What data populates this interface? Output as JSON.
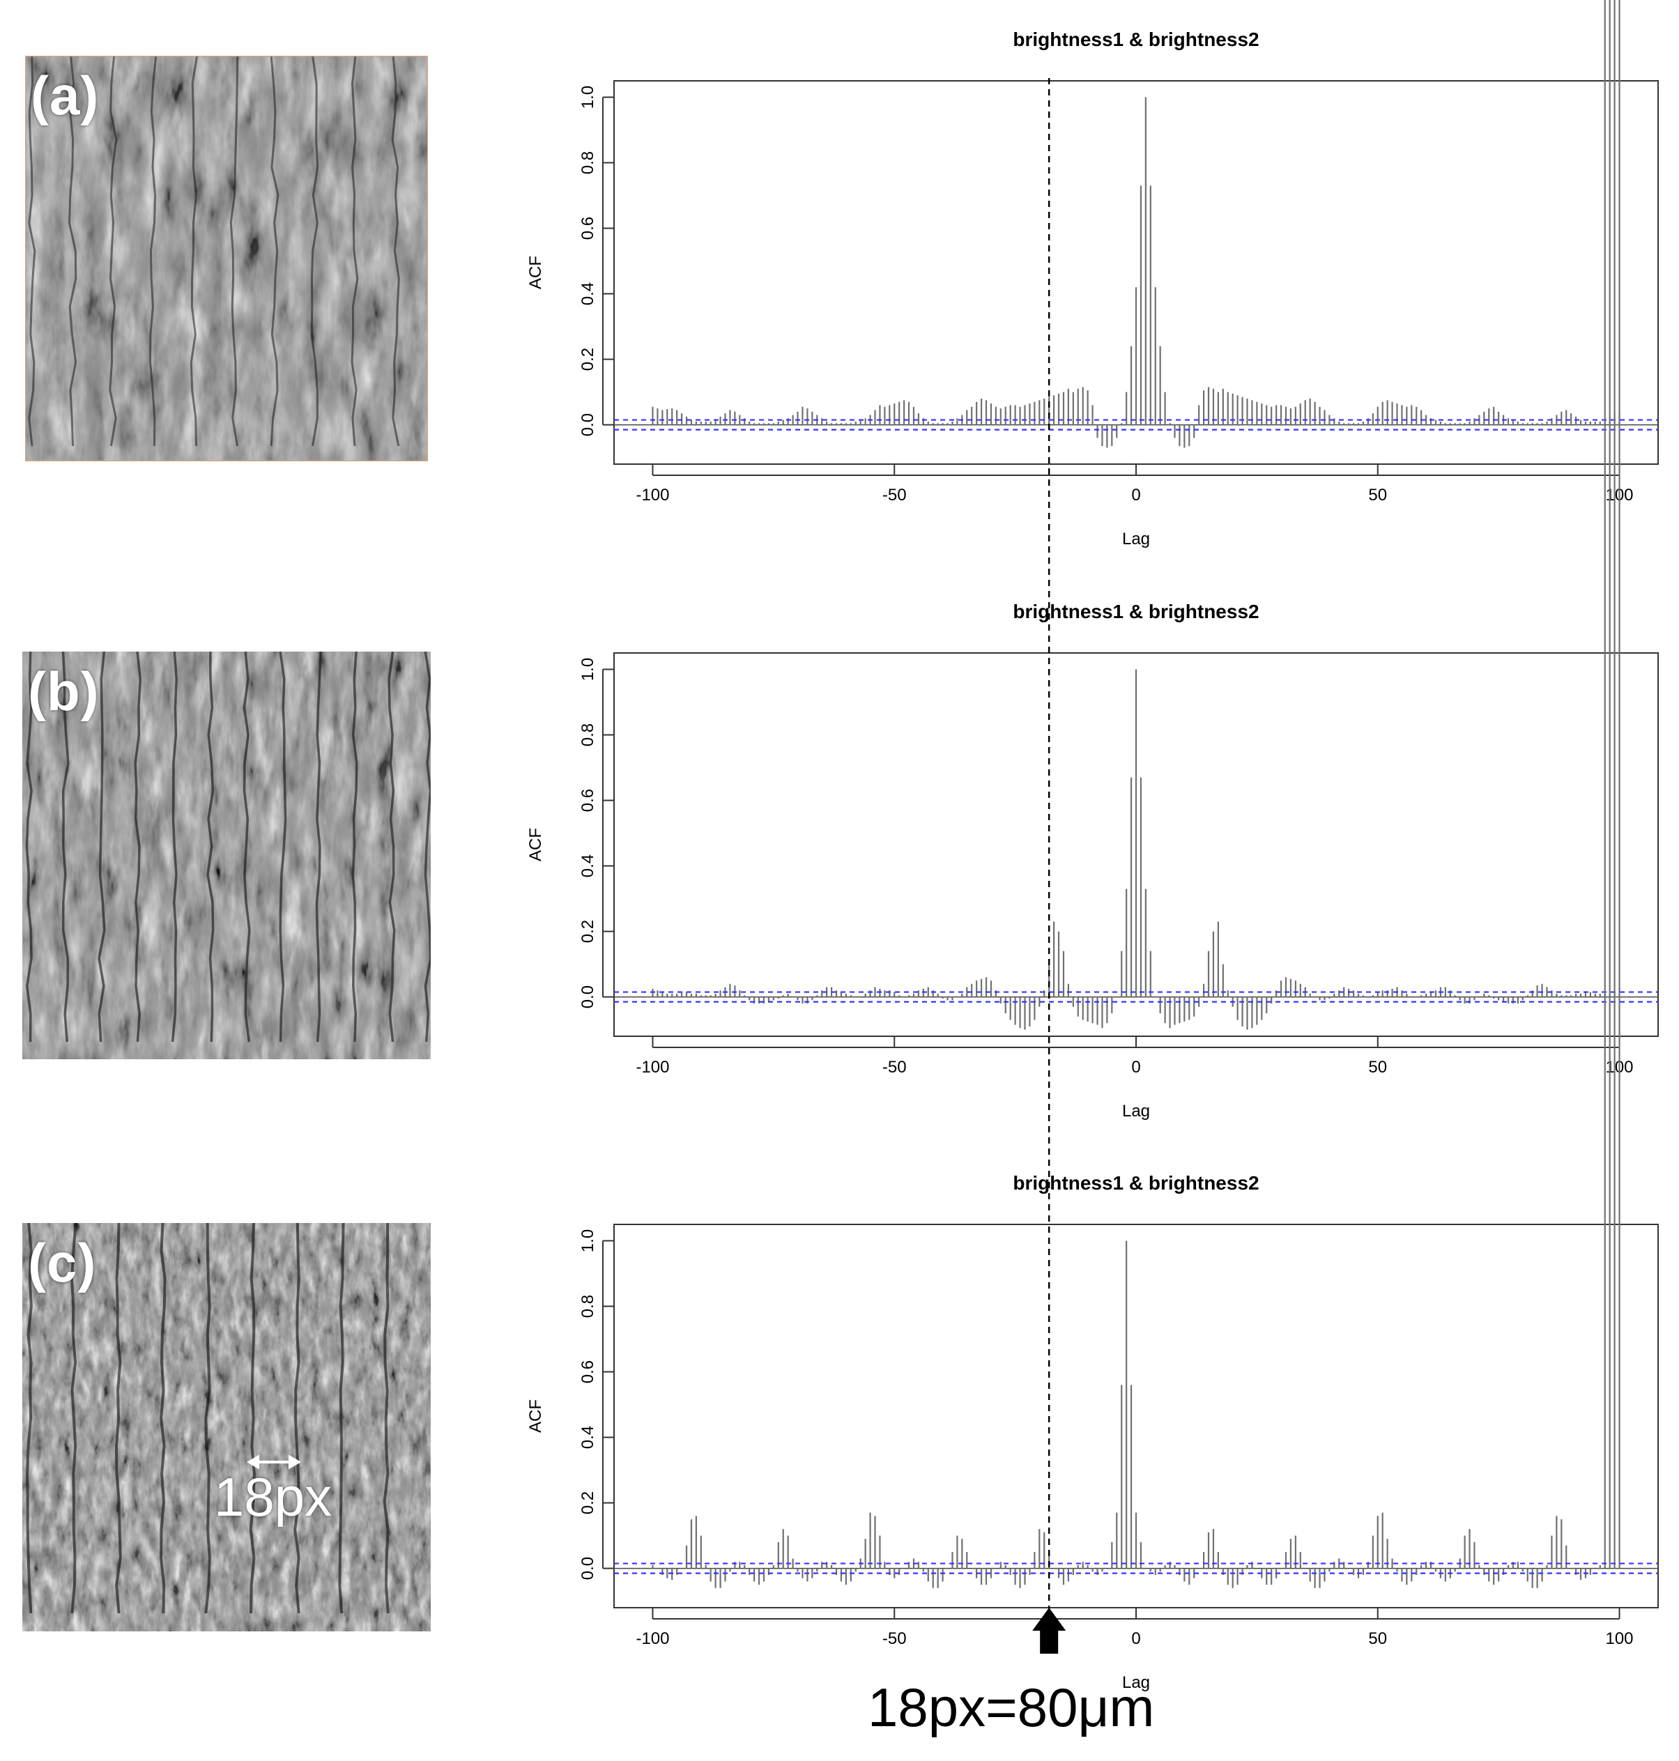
{
  "panels": [
    {
      "letter": "(a)"
    },
    {
      "letter": "(b)"
    },
    {
      "letter": "(c)",
      "annotation": "18px"
    }
  ],
  "scale_caption": "18px=80μm",
  "reference_line_lag": -18,
  "colors": {
    "bars": "#707070",
    "confidence": "#3333ff",
    "reference": "#000000",
    "text": "#000000"
  },
  "chart_data": [
    {
      "type": "bar",
      "title": "brightness1 & brightness2",
      "xlabel": "Lag",
      "ylabel": "ACF",
      "xlim": [
        -108,
        108
      ],
      "ylim": [
        -0.12,
        1.05
      ],
      "xticks": [
        -100,
        -50,
        0,
        50,
        100
      ],
      "yticks": [
        0.0,
        0.2,
        0.4,
        0.6,
        0.8,
        1.0
      ],
      "ci": 0.015,
      "lags": [
        -100,
        -99,
        -98,
        -97,
        -96,
        -95,
        -94,
        -93,
        -92,
        -91,
        -90,
        -89,
        -88,
        -87,
        -86,
        -85,
        -84,
        -83,
        -82,
        -81,
        -80,
        -79,
        -78,
        -77,
        -76,
        -75,
        -74,
        -73,
        -72,
        -71,
        -70,
        -69,
        -68,
        -67,
        -66,
        -65,
        -64,
        -63,
        -62,
        -61,
        -60,
        -59,
        -58,
        -57,
        -56,
        -55,
        -54,
        -53,
        -52,
        -51,
        -50,
        -49,
        -48,
        -47,
        -46,
        -45,
        -44,
        -43,
        -42,
        -41,
        -40,
        -39,
        -38,
        -37,
        -36,
        -35,
        -34,
        -33,
        -32,
        -31,
        -30,
        -29,
        -28,
        -27,
        -26,
        -25,
        -24,
        -23,
        -22,
        -21,
        -20,
        -19,
        -18,
        -17,
        -16,
        -15,
        -14,
        -13,
        -12,
        -11,
        -10,
        -9,
        -8,
        -7,
        -6,
        -5,
        -4,
        -3,
        -2,
        -1,
        0,
        1,
        2,
        3,
        4,
        5,
        6,
        7,
        8,
        9,
        10,
        11,
        12,
        13,
        14,
        15,
        16,
        17,
        18,
        19,
        20,
        21,
        22,
        23,
        24,
        25,
        26,
        27,
        28,
        29,
        30,
        31,
        32,
        33,
        34,
        35,
        36,
        37,
        38,
        39,
        40,
        41,
        42,
        43,
        44,
        45,
        46,
        47,
        48,
        49,
        50,
        51,
        52,
        53,
        54,
        55,
        56,
        57,
        58,
        59,
        60,
        61,
        62,
        63,
        64,
        65,
        66,
        67,
        68,
        69,
        70,
        71,
        72,
        73,
        74,
        75,
        76,
        77,
        78,
        79,
        80,
        81,
        82,
        83,
        84,
        85,
        86,
        87,
        88,
        89,
        90,
        91,
        92,
        93,
        94,
        95,
        96,
        97,
        98,
        99,
        100
      ],
      "values": [
        0.055,
        0.05,
        0.045,
        0.048,
        0.05,
        0.045,
        0.035,
        0.025,
        0.015,
        0.01,
        0.01,
        0.01,
        0.01,
        0.015,
        0.025,
        0.035,
        0.045,
        0.04,
        0.03,
        0.02,
        0.01,
        0.005,
        0.005,
        0.005,
        0.005,
        0.005,
        0.01,
        0.015,
        0.02,
        0.03,
        0.04,
        0.055,
        0.05,
        0.04,
        0.03,
        0.02,
        0.01,
        0.005,
        0.005,
        0.005,
        0.005,
        0.005,
        0.01,
        0.015,
        0.02,
        0.03,
        0.045,
        0.06,
        0.055,
        0.06,
        0.065,
        0.07,
        0.075,
        0.07,
        0.055,
        0.035,
        0.02,
        0.01,
        0.005,
        0.005,
        0.005,
        0.005,
        0.01,
        0.02,
        0.03,
        0.045,
        0.055,
        0.07,
        0.08,
        0.075,
        0.065,
        0.055,
        0.05,
        0.055,
        0.06,
        0.06,
        0.055,
        0.06,
        0.065,
        0.07,
        0.075,
        0.08,
        0.085,
        0.09,
        0.095,
        0.1,
        0.11,
        0.1,
        0.11,
        0.115,
        0.105,
        0.06,
        -0.04,
        -0.065,
        -0.07,
        -0.065,
        -0.04,
        0.005,
        0.1,
        0.24,
        0.42,
        0.73,
        1.0,
        0.73,
        0.42,
        0.24,
        0.1,
        0.005,
        -0.04,
        -0.065,
        -0.07,
        -0.065,
        -0.04,
        0.06,
        0.105,
        0.115,
        0.11,
        0.1,
        0.11,
        0.1,
        0.095,
        0.09,
        0.085,
        0.08,
        0.075,
        0.07,
        0.065,
        0.06,
        0.055,
        0.06,
        0.06,
        0.055,
        0.05,
        0.055,
        0.065,
        0.075,
        0.08,
        0.07,
        0.055,
        0.045,
        0.03,
        0.02,
        0.01,
        0.005,
        0.005,
        0.005,
        0.005,
        0.01,
        0.02,
        0.035,
        0.055,
        0.07,
        0.075,
        0.07,
        0.065,
        0.06,
        0.055,
        0.06,
        0.055,
        0.045,
        0.03,
        0.02,
        0.015,
        0.01,
        0.005,
        0.005,
        0.005,
        0.005,
        0.005,
        0.01,
        0.02,
        0.03,
        0.04,
        0.05,
        0.055,
        0.04,
        0.03,
        0.02,
        0.015,
        0.01,
        0.005,
        0.005,
        0.005,
        0.005,
        0.005,
        0.01,
        0.02,
        0.03,
        0.04,
        0.045,
        0.035,
        0.025,
        0.015,
        0.01,
        0.01,
        0.01,
        0.01,
        0.015,
        0.025,
        0.035,
        0.045,
        0.05,
        0.048,
        0.045,
        0.05,
        0.055
      ]
    },
    {
      "type": "bar",
      "title": "brightness1 & brightness2",
      "xlabel": "Lag",
      "ylabel": "ACF",
      "xlim": [
        -108,
        108
      ],
      "ylim": [
        -0.12,
        1.05
      ],
      "xticks": [
        -100,
        -50,
        0,
        50,
        100
      ],
      "yticks": [
        0.0,
        0.2,
        0.4,
        0.6,
        0.8,
        1.0
      ],
      "ci": 0.015,
      "lags": [
        -100,
        -99,
        -98,
        -97,
        -96,
        -95,
        -94,
        -93,
        -92,
        -91,
        -90,
        -89,
        -88,
        -87,
        -86,
        -85,
        -84,
        -83,
        -82,
        -81,
        -80,
        -79,
        -78,
        -77,
        -76,
        -75,
        -74,
        -73,
        -72,
        -71,
        -70,
        -69,
        -68,
        -67,
        -66,
        -65,
        -64,
        -63,
        -62,
        -61,
        -60,
        -59,
        -58,
        -57,
        -56,
        -55,
        -54,
        -53,
        -52,
        -51,
        -50,
        -49,
        -48,
        -47,
        -46,
        -45,
        -44,
        -43,
        -42,
        -41,
        -40,
        -39,
        -38,
        -37,
        -36,
        -35,
        -34,
        -33,
        -32,
        -31,
        -30,
        -29,
        -28,
        -27,
        -26,
        -25,
        -24,
        -23,
        -22,
        -21,
        -20,
        -19,
        -18,
        -17,
        -16,
        -15,
        -14,
        -13,
        -12,
        -11,
        -10,
        -9,
        -8,
        -7,
        -6,
        -5,
        -4,
        -3,
        -2,
        -1,
        0,
        1,
        2,
        3,
        4,
        5,
        6,
        7,
        8,
        9,
        10,
        11,
        12,
        13,
        14,
        15,
        16,
        17,
        18,
        19,
        20,
        21,
        22,
        23,
        24,
        25,
        26,
        27,
        28,
        29,
        30,
        31,
        32,
        33,
        34,
        35,
        36,
        37,
        38,
        39,
        40,
        41,
        42,
        43,
        44,
        45,
        46,
        47,
        48,
        49,
        50,
        51,
        52,
        53,
        54,
        55,
        56,
        57,
        58,
        59,
        60,
        61,
        62,
        63,
        64,
        65,
        66,
        67,
        68,
        69,
        70,
        71,
        72,
        73,
        74,
        75,
        76,
        77,
        78,
        79,
        80,
        81,
        82,
        83,
        84,
        85,
        86,
        87,
        88,
        89,
        90,
        91,
        92,
        93,
        94,
        95,
        96,
        97,
        98,
        99,
        100
      ],
      "values": [
        0.025,
        0.02,
        0.015,
        0.01,
        0.01,
        0.01,
        0.015,
        0.015,
        0.01,
        0.01,
        0.005,
        0.005,
        0.005,
        0.01,
        0.02,
        0.03,
        0.04,
        0.035,
        0.02,
        0.005,
        -0.01,
        -0.02,
        -0.02,
        -0.02,
        -0.015,
        -0.01,
        -0.005,
        0.005,
        0.01,
        0.0,
        -0.01,
        -0.02,
        -0.02,
        -0.01,
        0.005,
        0.02,
        0.03,
        0.03,
        0.02,
        0.015,
        0.01,
        0.005,
        0.0,
        0.0,
        0.01,
        0.02,
        0.03,
        0.025,
        0.02,
        0.02,
        0.015,
        0.005,
        0.0,
        0.005,
        0.01,
        0.02,
        0.025,
        0.03,
        0.02,
        0.01,
        -0.005,
        -0.01,
        -0.01,
        0.0,
        0.01,
        0.03,
        0.04,
        0.05,
        0.055,
        0.06,
        0.05,
        0.02,
        -0.02,
        -0.05,
        -0.07,
        -0.085,
        -0.095,
        -0.1,
        -0.09,
        -0.07,
        -0.03,
        0.02,
        0.1,
        0.23,
        0.2,
        0.14,
        0.04,
        -0.03,
        -0.06,
        -0.07,
        -0.075,
        -0.08,
        -0.085,
        -0.095,
        -0.08,
        -0.05,
        0.0,
        0.14,
        0.33,
        0.67,
        1.0,
        0.67,
        0.33,
        0.14,
        0.0,
        -0.05,
        -0.08,
        -0.095,
        -0.085,
        -0.08,
        -0.075,
        -0.07,
        -0.06,
        -0.03,
        0.04,
        0.14,
        0.2,
        0.23,
        0.1,
        0.02,
        -0.03,
        -0.07,
        -0.09,
        -0.1,
        -0.095,
        -0.085,
        -0.07,
        -0.05,
        -0.02,
        0.02,
        0.05,
        0.06,
        0.055,
        0.05,
        0.04,
        0.03,
        0.01,
        0.0,
        -0.01,
        -0.01,
        -0.005,
        0.01,
        0.02,
        0.03,
        0.025,
        0.02,
        0.01,
        0.005,
        0.0,
        0.005,
        0.015,
        0.02,
        0.02,
        0.025,
        0.03,
        0.02,
        0.01,
        0.0,
        0.0,
        0.005,
        0.01,
        0.015,
        0.02,
        0.03,
        0.03,
        0.02,
        0.005,
        -0.01,
        -0.02,
        -0.02,
        -0.01,
        0.0,
        0.01,
        0.005,
        -0.005,
        -0.01,
        -0.015,
        -0.02,
        -0.02,
        -0.02,
        -0.01,
        0.005,
        0.02,
        0.035,
        0.04,
        0.03,
        0.02,
        0.01,
        0.005,
        0.005,
        0.005,
        0.01,
        0.01,
        0.015,
        0.015,
        0.01,
        0.01,
        0.01,
        0.015,
        0.02,
        0.025
      ]
    },
    {
      "type": "bar",
      "title": "brightness1 & brightness2",
      "xlabel": "Lag",
      "ylabel": "ACF",
      "xlim": [
        -108,
        108
      ],
      "ylim": [
        -0.12,
        1.05
      ],
      "xticks": [
        -100,
        -50,
        0,
        50,
        100
      ],
      "yticks": [
        0.0,
        0.2,
        0.4,
        0.6,
        0.8,
        1.0
      ],
      "ci": 0.015,
      "lags": [
        -100,
        -99,
        -98,
        -97,
        -96,
        -95,
        -94,
        -93,
        -92,
        -91,
        -90,
        -89,
        -88,
        -87,
        -86,
        -85,
        -84,
        -83,
        -82,
        -81,
        -80,
        -79,
        -78,
        -77,
        -76,
        -75,
        -74,
        -73,
        -72,
        -71,
        -70,
        -69,
        -68,
        -67,
        -66,
        -65,
        -64,
        -63,
        -62,
        -61,
        -60,
        -59,
        -58,
        -57,
        -56,
        -55,
        -54,
        -53,
        -52,
        -51,
        -50,
        -49,
        -48,
        -47,
        -46,
        -45,
        -44,
        -43,
        -42,
        -41,
        -40,
        -39,
        -38,
        -37,
        -36,
        -35,
        -34,
        -33,
        -32,
        -31,
        -30,
        -29,
        -28,
        -27,
        -26,
        -25,
        -24,
        -23,
        -22,
        -21,
        -20,
        -19,
        -18,
        -17,
        -16,
        -15,
        -14,
        -13,
        -12,
        -11,
        -10,
        -9,
        -8,
        -7,
        -6,
        -5,
        -4,
        -3,
        -2,
        -1,
        0,
        1,
        2,
        3,
        4,
        5,
        6,
        7,
        8,
        9,
        10,
        11,
        12,
        13,
        14,
        15,
        16,
        17,
        18,
        19,
        20,
        21,
        22,
        23,
        24,
        25,
        26,
        27,
        28,
        29,
        30,
        31,
        32,
        33,
        34,
        35,
        36,
        37,
        38,
        39,
        40,
        41,
        42,
        43,
        44,
        45,
        46,
        47,
        48,
        49,
        50,
        51,
        52,
        53,
        54,
        55,
        56,
        57,
        58,
        59,
        60,
        61,
        62,
        63,
        64,
        65,
        66,
        67,
        68,
        69,
        70,
        71,
        72,
        73,
        74,
        75,
        76,
        77,
        78,
        79,
        80,
        81,
        82,
        83,
        84,
        85,
        86,
        87,
        88,
        89,
        90,
        91,
        92,
        93,
        94,
        95,
        96,
        97,
        98,
        99,
        100
      ],
      "values": [
        0.01,
        0.0,
        -0.02,
        -0.03,
        -0.035,
        -0.02,
        0.0,
        0.07,
        0.15,
        0.16,
        0.1,
        0.01,
        -0.04,
        -0.06,
        -0.06,
        -0.04,
        -0.01,
        0.02,
        0.02,
        0.01,
        -0.02,
        -0.04,
        -0.05,
        -0.04,
        -0.02,
        0.01,
        0.08,
        0.12,
        0.1,
        0.03,
        -0.01,
        -0.03,
        -0.04,
        -0.03,
        -0.01,
        0.02,
        0.02,
        0.01,
        -0.02,
        -0.04,
        -0.05,
        -0.04,
        -0.01,
        0.03,
        0.09,
        0.17,
        0.16,
        0.1,
        0.02,
        -0.02,
        -0.03,
        -0.02,
        0.0,
        0.02,
        0.03,
        0.02,
        -0.01,
        -0.04,
        -0.06,
        -0.06,
        -0.04,
        0.0,
        0.05,
        0.1,
        0.09,
        0.05,
        0.0,
        -0.03,
        -0.05,
        -0.05,
        -0.03,
        0.0,
        0.02,
        0.01,
        -0.02,
        -0.05,
        -0.06,
        -0.05,
        -0.02,
        0.05,
        0.12,
        0.11,
        0.05,
        0.0,
        -0.03,
        -0.05,
        -0.04,
        -0.02,
        0.01,
        0.02,
        0.01,
        -0.01,
        -0.02,
        -0.01,
        0.0,
        0.08,
        0.17,
        0.56,
        1.0,
        0.56,
        0.17,
        0.08,
        0.0,
        -0.01,
        -0.02,
        -0.01,
        0.01,
        0.02,
        0.01,
        -0.02,
        -0.04,
        -0.05,
        -0.03,
        0.0,
        0.05,
        0.11,
        0.12,
        0.05,
        -0.02,
        -0.05,
        -0.06,
        -0.05,
        -0.02,
        0.01,
        0.02,
        0.0,
        -0.03,
        -0.05,
        -0.05,
        -0.03,
        0.0,
        0.05,
        0.09,
        0.1,
        0.05,
        0.0,
        -0.04,
        -0.06,
        -0.06,
        -0.04,
        -0.01,
        0.02,
        0.03,
        0.02,
        0.0,
        -0.02,
        -0.03,
        -0.02,
        0.02,
        0.1,
        0.16,
        0.17,
        0.09,
        0.03,
        -0.01,
        -0.04,
        -0.05,
        -0.04,
        -0.02,
        0.01,
        0.02,
        0.02,
        -0.01,
        -0.03,
        -0.04,
        -0.03,
        -0.01,
        0.03,
        0.1,
        0.12,
        0.08,
        0.01,
        -0.02,
        -0.04,
        -0.05,
        -0.04,
        -0.02,
        0.01,
        0.02,
        0.02,
        -0.01,
        -0.04,
        -0.06,
        -0.06,
        -0.04,
        0.01,
        0.1,
        0.16,
        0.15,
        0.07,
        0.0,
        -0.02,
        -0.035,
        -0.03,
        -0.02,
        0.0,
        0.01
      ]
    }
  ]
}
